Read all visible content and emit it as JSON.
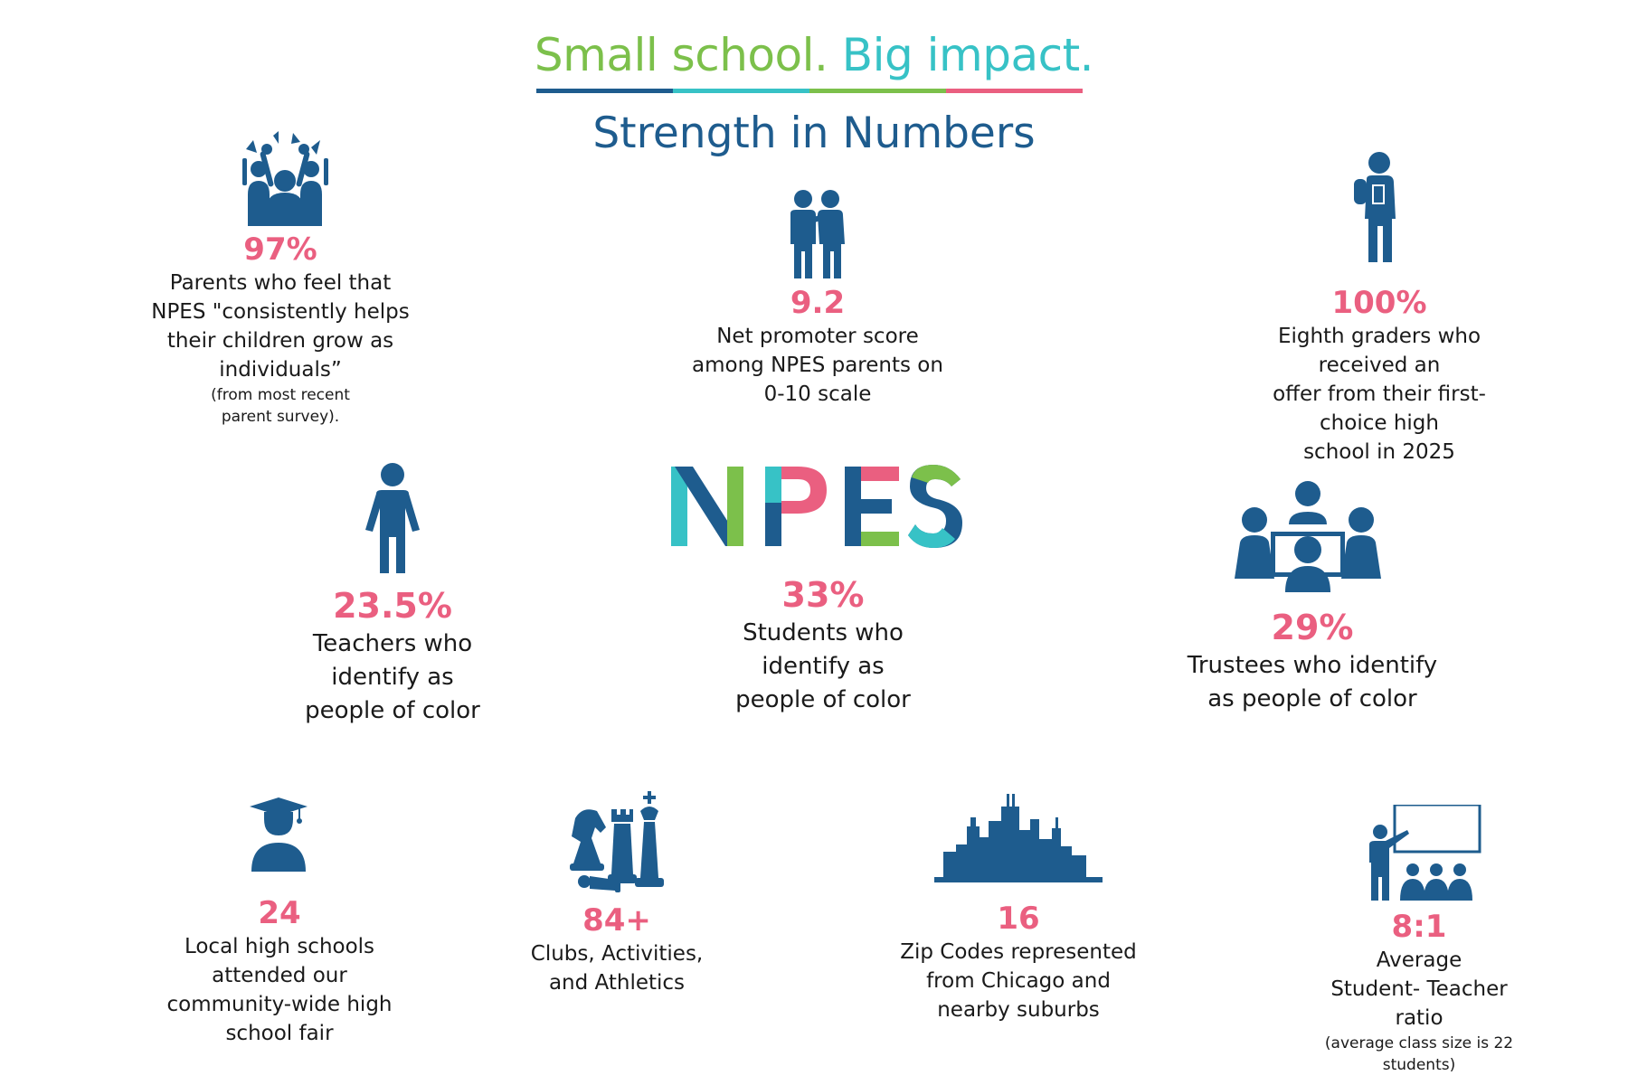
{
  "header": {
    "tagline_part1": "Small school.",
    "tagline_part2": "Big impact.",
    "subtitle": "Strength in Numbers",
    "rule_colors": [
      "#1e5c8e",
      "#37c2c6",
      "#7cc04b",
      "#ea5f80"
    ]
  },
  "logo": {
    "text": "NPES",
    "colors": [
      "#37c2c6",
      "#1e5c8e",
      "#7cc04b",
      "#ea5f80"
    ]
  },
  "colors": {
    "accent": "#ea5f80",
    "icon": "#1e5c8e",
    "green": "#7cc04b",
    "teal": "#37c2c6"
  },
  "stats": {
    "parents": {
      "value": "97%",
      "lines": [
        "Parents who feel that",
        "NPES \"consistently helps",
        "their children grow as",
        "individuals”"
      ],
      "note_lines": [
        "(from most recent",
        "parent survey)."
      ],
      "icon": "cheering-crowd-icon"
    },
    "promoter": {
      "value": "9.2",
      "lines": [
        "Net promoter score",
        "among NPES parents on",
        "0-10 scale"
      ],
      "icon": "two-people-talking-icon"
    },
    "eighth": {
      "value": "100%",
      "lines": [
        "Eighth graders who received an",
        "offer from their first-choice high",
        "school in 2025"
      ],
      "icon": "student-with-backpack-icon"
    },
    "teachers": {
      "value": "23.5%",
      "lines": [
        "Teachers who",
        "identify as",
        "people of color"
      ],
      "icon": "person-standing-icon"
    },
    "students": {
      "value": "33%",
      "lines": [
        "Students who",
        "identify as",
        "people of color"
      ]
    },
    "trustees": {
      "value": "29%",
      "lines": [
        "Trustees who identify",
        "as people of color"
      ],
      "icon": "meeting-table-icon"
    },
    "highschools": {
      "value": "24",
      "lines": [
        "Local high schools",
        "attended our",
        "community-wide high",
        "school fair"
      ],
      "icon": "graduate-icon"
    },
    "clubs": {
      "value": "84+",
      "lines": [
        "Clubs, Activities,",
        "and Athletics"
      ],
      "icon": "chess-pieces-icon"
    },
    "zipcodes": {
      "value": "16",
      "lines": [
        "Zip Codes represented",
        "from Chicago and",
        "nearby suburbs"
      ],
      "icon": "city-skyline-icon"
    },
    "ratio": {
      "value": "8:1",
      "lines": [
        "Average",
        "Student- Teacher ratio"
      ],
      "note_lines": [
        "(average class size is 22",
        "students)"
      ],
      "icon": "teacher-classroom-icon"
    }
  }
}
